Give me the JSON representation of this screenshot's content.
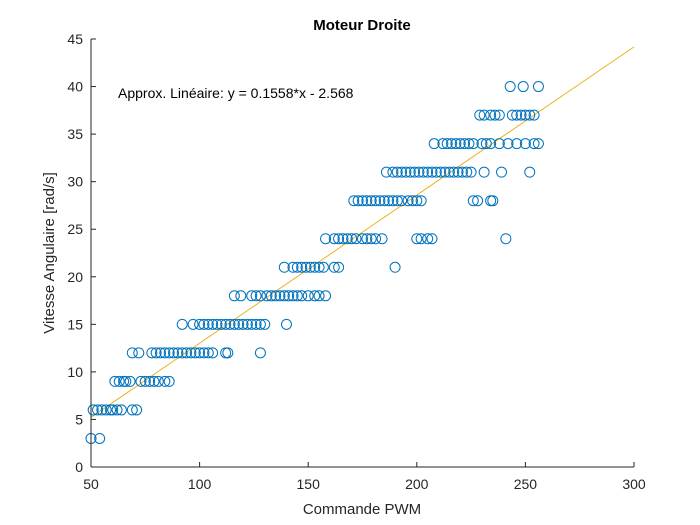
{
  "chart_data": {
    "type": "scatter",
    "title": "Moteur Droite",
    "xlabel": "Commande PWM",
    "ylabel": "Vitesse Angulaire [rad/s]",
    "xlim": [
      50,
      300
    ],
    "ylim": [
      0,
      45
    ],
    "xticks": [
      "50",
      "100",
      "150",
      "200",
      "250",
      "300"
    ],
    "yticks": [
      "0",
      "5",
      "10",
      "15",
      "20",
      "25",
      "30",
      "35",
      "40",
      "45"
    ],
    "grid": false,
    "annotation": "Approx. Linéaire:  y = 0.1558*x - 2.568",
    "fit": {
      "slope": 0.1558,
      "intercept": -2.568,
      "x_range": [
        50,
        300
      ]
    },
    "marker_color": "#0072BD",
    "fit_color": "#EDB120",
    "series": [
      {
        "marker": "circle",
        "points": [
          [
            50,
            3
          ],
          [
            54,
            3
          ],
          [
            51,
            6
          ],
          [
            53,
            6
          ],
          [
            55,
            6
          ],
          [
            57,
            6
          ],
          [
            59,
            6
          ],
          [
            60,
            6
          ],
          [
            62,
            6
          ],
          [
            64,
            6
          ],
          [
            69,
            6
          ],
          [
            71,
            6
          ],
          [
            61,
            9
          ],
          [
            63,
            9
          ],
          [
            65,
            9
          ],
          [
            66,
            9
          ],
          [
            68,
            9
          ],
          [
            73,
            9
          ],
          [
            75,
            9
          ],
          [
            77,
            9
          ],
          [
            79,
            9
          ],
          [
            81,
            9
          ],
          [
            84,
            9
          ],
          [
            86,
            9
          ],
          [
            69,
            12
          ],
          [
            72,
            12
          ],
          [
            78,
            12
          ],
          [
            80,
            12
          ],
          [
            82,
            12
          ],
          [
            84,
            12
          ],
          [
            86,
            12
          ],
          [
            88,
            12
          ],
          [
            90,
            12
          ],
          [
            92,
            12
          ],
          [
            94,
            12
          ],
          [
            96,
            12
          ],
          [
            98,
            12
          ],
          [
            100,
            12
          ],
          [
            102,
            12
          ],
          [
            104,
            12
          ],
          [
            106,
            12
          ],
          [
            112,
            12
          ],
          [
            113,
            12
          ],
          [
            128,
            12
          ],
          [
            92,
            15
          ],
          [
            97,
            15
          ],
          [
            100,
            15
          ],
          [
            102,
            15
          ],
          [
            104,
            15
          ],
          [
            106,
            15
          ],
          [
            108,
            15
          ],
          [
            110,
            15
          ],
          [
            112,
            15
          ],
          [
            114,
            15
          ],
          [
            116,
            15
          ],
          [
            118,
            15
          ],
          [
            120,
            15
          ],
          [
            122,
            15
          ],
          [
            124,
            15
          ],
          [
            126,
            15
          ],
          [
            128,
            15
          ],
          [
            130,
            15
          ],
          [
            140,
            15
          ],
          [
            116,
            18
          ],
          [
            119,
            18
          ],
          [
            124,
            18
          ],
          [
            126,
            18
          ],
          [
            128,
            18
          ],
          [
            131,
            18
          ],
          [
            133,
            18
          ],
          [
            135,
            18
          ],
          [
            137,
            18
          ],
          [
            139,
            18
          ],
          [
            141,
            18
          ],
          [
            143,
            18
          ],
          [
            145,
            18
          ],
          [
            147,
            18
          ],
          [
            150,
            18
          ],
          [
            153,
            18
          ],
          [
            155,
            18
          ],
          [
            158,
            18
          ],
          [
            139,
            21
          ],
          [
            143,
            21
          ],
          [
            145,
            21
          ],
          [
            147,
            21
          ],
          [
            149,
            21
          ],
          [
            151,
            21
          ],
          [
            153,
            21
          ],
          [
            155,
            21
          ],
          [
            157,
            21
          ],
          [
            162,
            21
          ],
          [
            164,
            21
          ],
          [
            190,
            21
          ],
          [
            158,
            24
          ],
          [
            162,
            24
          ],
          [
            164,
            24
          ],
          [
            166,
            24
          ],
          [
            168,
            24
          ],
          [
            170,
            24
          ],
          [
            172,
            24
          ],
          [
            175,
            24
          ],
          [
            177,
            24
          ],
          [
            179,
            24
          ],
          [
            181,
            24
          ],
          [
            184,
            24
          ],
          [
            200,
            24
          ],
          [
            202,
            24
          ],
          [
            205,
            24
          ],
          [
            207,
            24
          ],
          [
            241,
            24
          ],
          [
            171,
            28
          ],
          [
            173,
            28
          ],
          [
            175,
            28
          ],
          [
            177,
            28
          ],
          [
            179,
            28
          ],
          [
            181,
            28
          ],
          [
            183,
            28
          ],
          [
            185,
            28
          ],
          [
            187,
            28
          ],
          [
            189,
            28
          ],
          [
            191,
            28
          ],
          [
            193,
            28
          ],
          [
            196,
            28
          ],
          [
            198,
            28
          ],
          [
            200,
            28
          ],
          [
            202,
            28
          ],
          [
            226,
            28
          ],
          [
            228,
            28
          ],
          [
            234,
            28
          ],
          [
            235,
            28
          ],
          [
            186,
            31
          ],
          [
            189,
            31
          ],
          [
            191,
            31
          ],
          [
            193,
            31
          ],
          [
            195,
            31
          ],
          [
            197,
            31
          ],
          [
            199,
            31
          ],
          [
            201,
            31
          ],
          [
            203,
            31
          ],
          [
            205,
            31
          ],
          [
            207,
            31
          ],
          [
            209,
            31
          ],
          [
            211,
            31
          ],
          [
            213,
            31
          ],
          [
            215,
            31
          ],
          [
            217,
            31
          ],
          [
            219,
            31
          ],
          [
            221,
            31
          ],
          [
            223,
            31
          ],
          [
            225,
            31
          ],
          [
            231,
            31
          ],
          [
            239,
            31
          ],
          [
            252,
            31
          ],
          [
            208,
            34
          ],
          [
            212,
            34
          ],
          [
            214,
            34
          ],
          [
            216,
            34
          ],
          [
            218,
            34
          ],
          [
            220,
            34
          ],
          [
            222,
            34
          ],
          [
            224,
            34
          ],
          [
            226,
            34
          ],
          [
            230,
            34
          ],
          [
            232,
            34
          ],
          [
            234,
            34
          ],
          [
            238,
            34
          ],
          [
            242,
            34
          ],
          [
            246,
            34
          ],
          [
            250,
            34
          ],
          [
            254,
            34
          ],
          [
            256,
            34
          ],
          [
            229,
            37
          ],
          [
            231,
            37
          ],
          [
            234,
            37
          ],
          [
            236,
            37
          ],
          [
            238,
            37
          ],
          [
            244,
            37
          ],
          [
            246,
            37
          ],
          [
            248,
            37
          ],
          [
            250,
            37
          ],
          [
            252,
            37
          ],
          [
            254,
            37
          ],
          [
            243,
            40
          ],
          [
            249,
            40
          ],
          [
            256,
            40
          ]
        ]
      }
    ]
  }
}
